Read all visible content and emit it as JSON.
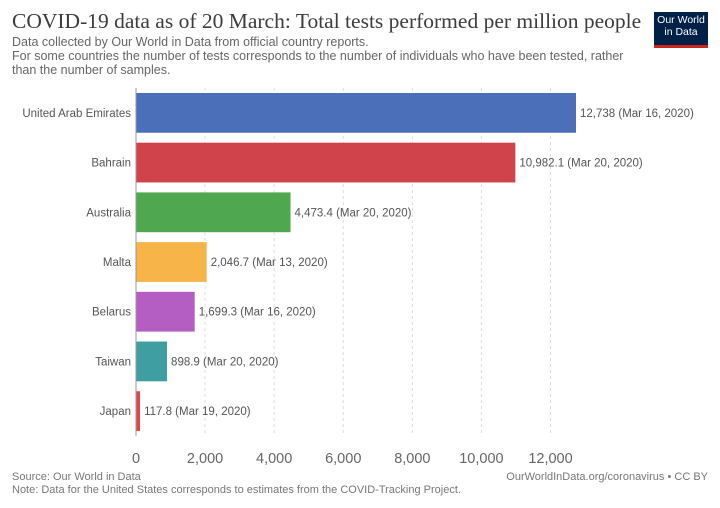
{
  "header": {
    "title": "COVID-19 data as of 20 March: Total tests performed per million people",
    "subtitle_lines": [
      "Data collected by Our World in Data from official country reports.",
      "For some countries the number of tests corresponds to the number of individuals who have been tested, rather",
      "than the number of samples."
    ],
    "logo_lines": [
      "Our World",
      "in Data"
    ]
  },
  "footer": {
    "source": "Source: Our World in Data",
    "note": "Note: Data for the United States corresponds to estimates from the COVID-Tracking Project.",
    "url_license": "OurWorldInData.org/coronavirus • CC BY"
  },
  "colors": {
    "grid": "#dddddd",
    "axis": "#999999",
    "label_text": "#555555"
  },
  "chart_data": {
    "type": "bar",
    "orientation": "horizontal",
    "categories": [
      "United Arab Emirates",
      "Bahrain",
      "Australia",
      "Malta",
      "Belarus",
      "Taiwan",
      "Japan"
    ],
    "values": [
      12738,
      10982.1,
      4473.4,
      2046.7,
      1699.3,
      898.9,
      117.8
    ],
    "value_labels": [
      "12,738 (Mar 16, 2020)",
      "10,982.1 (Mar 20, 2020)",
      "4,473.4 (Mar 20, 2020)",
      "2,046.7 (Mar 13, 2020)",
      "1,699.3 (Mar 16, 2020)",
      "898.9 (Mar 20, 2020)",
      "117.8 (Mar 19, 2020)"
    ],
    "bar_colors": [
      "#4c6fba",
      "#d1434a",
      "#4fa84f",
      "#f7b449",
      "#b45dc2",
      "#3e9ea2",
      "#e3464a"
    ],
    "xlim": [
      0,
      12738
    ],
    "x_ticks": [
      0,
      2000,
      4000,
      6000,
      8000,
      10000,
      12000
    ],
    "x_tick_labels": [
      "0",
      "2,000",
      "4,000",
      "6,000",
      "8,000",
      "10,000",
      "12,000"
    ],
    "grid": true,
    "title": "COVID-19 data as of 20 March: Total tests performed per million people"
  }
}
